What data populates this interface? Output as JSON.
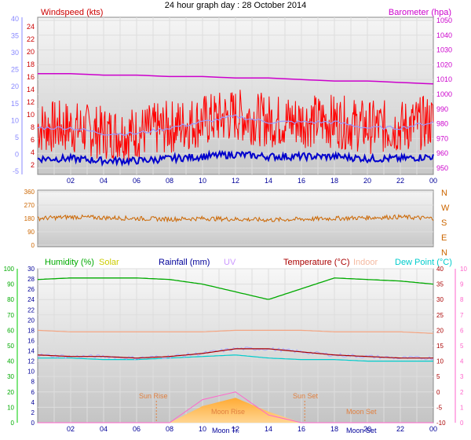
{
  "title": "24 hour graph day : 28 October 2014",
  "wind_panel": {
    "left_label": "Windspeed (kts)",
    "right_label": "Barometer (hpa)",
    "left_outer_ticks": [
      "40",
      "35",
      "30",
      "25",
      "20",
      "15",
      "10",
      "5",
      "0",
      "-5"
    ],
    "left_inner_ticks": [
      "24",
      "22",
      "20",
      "18",
      "16",
      "14",
      "12",
      "10",
      "8",
      "6",
      "4",
      "2"
    ],
    "right_ticks": [
      "1050",
      "1040",
      "1030",
      "1020",
      "1010",
      "1000",
      "990",
      "980",
      "970",
      "960",
      "950"
    ],
    "x_ticks": [
      "02",
      "04",
      "06",
      "08",
      "10",
      "12",
      "14",
      "16",
      "18",
      "20",
      "22",
      "00"
    ]
  },
  "dir_panel": {
    "left_ticks": [
      "360",
      "270",
      "180",
      "90",
      "0"
    ],
    "right_labels": [
      "N",
      "W",
      "S",
      "E",
      "N"
    ]
  },
  "bottom_panel": {
    "legend": [
      "Humidity (%)",
      "Solar",
      "Rainfall (mm)",
      "UV",
      "Temperature (°C)",
      "Indoor",
      "Dew Point (°C)"
    ],
    "humidity_ticks": [
      "100",
      "90",
      "80",
      "70",
      "60",
      "50",
      "40",
      "30",
      "20",
      "10",
      "0"
    ],
    "rain_ticks": [
      "30",
      "28",
      "26",
      "24",
      "22",
      "20",
      "18",
      "16",
      "14",
      "12",
      "10",
      "8",
      "6",
      "4",
      "2",
      "0"
    ],
    "temp_ticks": [
      "40",
      "35",
      "30",
      "25",
      "20",
      "15",
      "10",
      "5",
      "0",
      "-5",
      "-10"
    ],
    "uv_ticks": [
      "10",
      "9",
      "8",
      "7",
      "6",
      "5",
      "4",
      "3",
      "2",
      "1",
      "0"
    ],
    "x_ticks": [
      "02",
      "04",
      "06",
      "08",
      "10",
      "12",
      "14",
      "16",
      "18",
      "20",
      "22",
      "00"
    ],
    "annotations": [
      "Sun Rise",
      "Moon Rise",
      "Sun Set",
      "Moon Set"
    ],
    "moon_labels": [
      "Moon Tr.",
      "Moon Set"
    ]
  },
  "colors": {
    "wind": "#ff0000",
    "gust": "#cc0000",
    "baro": "#cc00cc",
    "avgwind": "#0000cc",
    "direction": "#cc6600",
    "humidity": "#00aa00",
    "temp": "#aa0000",
    "dew": "#00cccc",
    "indoor": "#f4a582",
    "solar": "#ffaa33",
    "uv": "#ff66cc"
  },
  "chart_data": [
    {
      "type": "line",
      "title": "24 hour graph day : 28 October 2014",
      "x": [
        "00",
        "02",
        "04",
        "06",
        "08",
        "10",
        "12",
        "14",
        "16",
        "18",
        "20",
        "22",
        "00"
      ],
      "series": [
        {
          "name": "Windspeed (kts)",
          "values": [
            6,
            6,
            5,
            5,
            6,
            7,
            8,
            7,
            7,
            7,
            6,
            6,
            7
          ]
        },
        {
          "name": "Barometer (hpa)",
          "values": [
            1014,
            1014,
            1013,
            1013,
            1012,
            1012,
            1011,
            1011,
            1010,
            1009,
            1009,
            1008,
            1007
          ]
        }
      ],
      "ylabel": "Windspeed (kts)",
      "y2label": "Barometer (hpa)",
      "ylim": [
        0,
        25
      ],
      "y2lim": [
        950,
        1050
      ]
    },
    {
      "type": "line",
      "x": [
        "00",
        "02",
        "04",
        "06",
        "08",
        "10",
        "12",
        "14",
        "16",
        "18",
        "20",
        "22",
        "00"
      ],
      "series": [
        {
          "values": [
            180,
            190,
            185,
            180,
            175,
            180,
            175,
            170,
            175,
            180,
            185,
            190,
            180
          ]
        }
      ],
      "ylim": [
        0,
        360
      ]
    },
    {
      "type": "line",
      "x": [
        "00",
        "02",
        "04",
        "06",
        "08",
        "10",
        "12",
        "14",
        "16",
        "18",
        "20",
        "22",
        "00"
      ],
      "series": [
        {
          "name": "Humidity (%)",
          "values": [
            93,
            94,
            94,
            94,
            93,
            90,
            85,
            80,
            87,
            94,
            93,
            92,
            90
          ]
        },
        {
          "name": "Temperature (°C)",
          "values": [
            12,
            11.5,
            11.5,
            11,
            11.5,
            12.5,
            14,
            14,
            13,
            12,
            11.5,
            11,
            11
          ]
        },
        {
          "name": "Dew Point (°C)",
          "values": [
            11,
            11,
            10.5,
            10.5,
            11,
            11.5,
            12,
            11,
            10.5,
            10.5,
            10,
            10,
            10
          ]
        },
        {
          "name": "Indoor",
          "values": [
            20,
            19.5,
            19.5,
            19.5,
            19.5,
            19.5,
            20,
            20,
            20,
            19.5,
            19.5,
            19.5,
            19
          ]
        },
        {
          "name": "Solar",
          "values": [
            0,
            0,
            0,
            0,
            0,
            6,
            9,
            4,
            0,
            0,
            0,
            0,
            0
          ]
        },
        {
          "name": "UV",
          "values": [
            0,
            0,
            0,
            0,
            0,
            1.5,
            2,
            0.5,
            0,
            0,
            0,
            0,
            0
          ]
        },
        {
          "name": "Rainfall (mm)",
          "values": [
            0,
            0,
            0,
            0,
            0,
            0,
            0,
            0,
            0,
            0,
            0,
            0,
            0
          ]
        }
      ],
      "ylim": [
        0,
        100
      ]
    }
  ]
}
